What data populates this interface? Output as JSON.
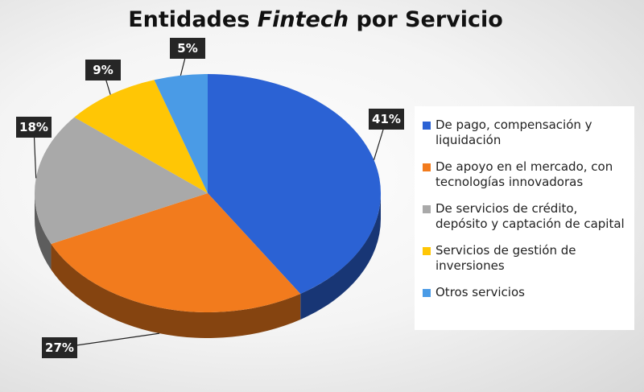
{
  "chart_data": {
    "type": "pie3d",
    "title": [
      "Entidades",
      "Fintech",
      "por Servicio"
    ],
    "categories": [
      "De pago, compensación y liquidación",
      "De apoyo en el mercado, con tecnologías innovadoras",
      "De servicios de crédito, depósito y captación de capital",
      "Servicios de gestión de inversiones",
      "Otros servicios"
    ],
    "values": [
      41,
      27,
      18,
      9,
      5
    ],
    "value_labels": [
      "41%",
      "27%",
      "18%",
      "9%",
      "5%"
    ],
    "colors": [
      "#2b62d4",
      "#f27b1d",
      "#a9a9a9",
      "#ffc605",
      "#4a9be6"
    ],
    "legend": "right"
  }
}
